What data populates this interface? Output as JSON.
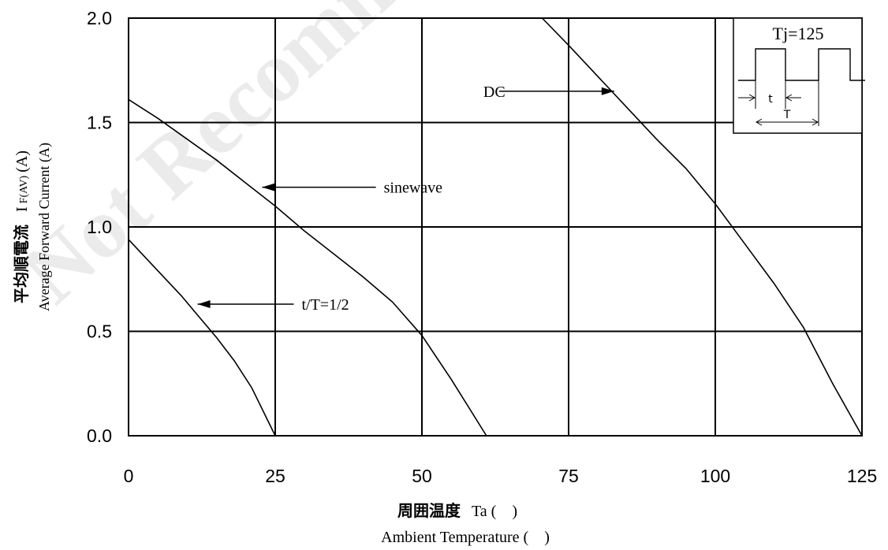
{
  "chart_data": {
    "type": "line",
    "watermark": "Not Recommended",
    "xlabel_jp": "周囲温度",
    "xlabel_sym": "Ta (　)",
    "xlabel_en": "Ambient Temperature (　)",
    "ylabel_jp": "平均順電流",
    "ylabel_sym_main": "I",
    "ylabel_sym_sub": "F(AV)",
    "ylabel_sym_unit": " (A)",
    "ylabel_en": "Average Forward Current (A)",
    "xlim": [
      0,
      125
    ],
    "ylim": [
      0,
      2.0
    ],
    "x_ticks": [
      {
        "value": 0,
        "label": "0"
      },
      {
        "value": 25,
        "label": "25"
      },
      {
        "value": 50,
        "label": "50"
      },
      {
        "value": 75,
        "label": "75"
      },
      {
        "value": 100,
        "label": "100"
      },
      {
        "value": 125,
        "label": "125"
      }
    ],
    "y_ticks": [
      {
        "value": 0,
        "label": "0.0"
      },
      {
        "value": 0.5,
        "label": "0.5"
      },
      {
        "value": 1.0,
        "label": "1.0"
      },
      {
        "value": 1.5,
        "label": "1.5"
      },
      {
        "value": 2.0,
        "label": "2.0"
      }
    ],
    "grid": true,
    "series": [
      {
        "name": "DC",
        "points": [
          [
            70.5,
            2.0
          ],
          [
            75,
            1.87
          ],
          [
            80,
            1.72
          ],
          [
            85,
            1.57
          ],
          [
            90,
            1.42
          ],
          [
            95,
            1.28
          ],
          [
            100,
            1.11
          ],
          [
            105,
            0.92
          ],
          [
            110,
            0.73
          ],
          [
            115,
            0.52
          ],
          [
            120,
            0.25
          ],
          [
            125,
            0.0
          ]
        ]
      },
      {
        "name": "sinewave",
        "points": [
          [
            0,
            1.61
          ],
          [
            5,
            1.52
          ],
          [
            10,
            1.42
          ],
          [
            15,
            1.32
          ],
          [
            20,
            1.21
          ],
          [
            25,
            1.1
          ],
          [
            30,
            0.98
          ],
          [
            35,
            0.87
          ],
          [
            40,
            0.76
          ],
          [
            45,
            0.64
          ],
          [
            50,
            0.48
          ],
          [
            55,
            0.27
          ],
          [
            61,
            0.0
          ]
        ]
      },
      {
        "name": "t/T=1/2",
        "points": [
          [
            0,
            0.94
          ],
          [
            3,
            0.85
          ],
          [
            6,
            0.76
          ],
          [
            9,
            0.67
          ],
          [
            12,
            0.57
          ],
          [
            15,
            0.47
          ],
          [
            18,
            0.36
          ],
          [
            21,
            0.23
          ],
          [
            25,
            0.0
          ]
        ]
      }
    ],
    "annotations": [
      {
        "text": "DC",
        "series": "DC",
        "arrow_to": [
          82.5,
          1.65
        ],
        "text_at": [
          64.5,
          1.65
        ]
      },
      {
        "text": "sinewave",
        "series": "sinewave",
        "arrow_to": [
          22.5,
          1.19
        ],
        "text_at": [
          43.5,
          1.19
        ]
      },
      {
        "text": "t/T=1/2",
        "series": "t/T=1/2",
        "arrow_to": [
          11.5,
          0.63
        ],
        "text_at": [
          29.5,
          0.63
        ]
      }
    ],
    "inset": {
      "title": "Tj=125",
      "t_label": "t",
      "T_label": "T"
    }
  }
}
